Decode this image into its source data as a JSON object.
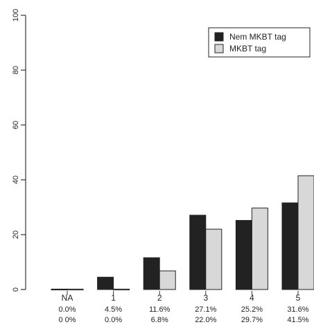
{
  "chart_data": {
    "type": "bar",
    "title": "",
    "xlabel": "",
    "ylabel": "",
    "ylim": [
      0,
      100
    ],
    "yticks": [
      "0",
      "20",
      "40",
      "60",
      "80",
      "100"
    ],
    "categories": [
      "NA",
      "1",
      "2",
      "3",
      "4",
      "5"
    ],
    "series": [
      {
        "name": "Nem MKBT tag",
        "color": "#222222",
        "values": [
          0.0,
          4.5,
          11.6,
          27.1,
          25.2,
          31.6
        ],
        "labels": [
          "0.0%",
          "4.5%",
          "11.6%",
          "27.1%",
          "25.2%",
          "31.6%"
        ]
      },
      {
        "name": "MKBT tag",
        "color": "#d8d8d8",
        "values": [
          0.0,
          0.0,
          6.8,
          22.0,
          29.7,
          41.5
        ],
        "labels": [
          "0 0%",
          "0.0%",
          "6.8%",
          "22.0%",
          "29.7%",
          "41.5%"
        ]
      }
    ],
    "grid": false,
    "legend_position": "top-right"
  }
}
